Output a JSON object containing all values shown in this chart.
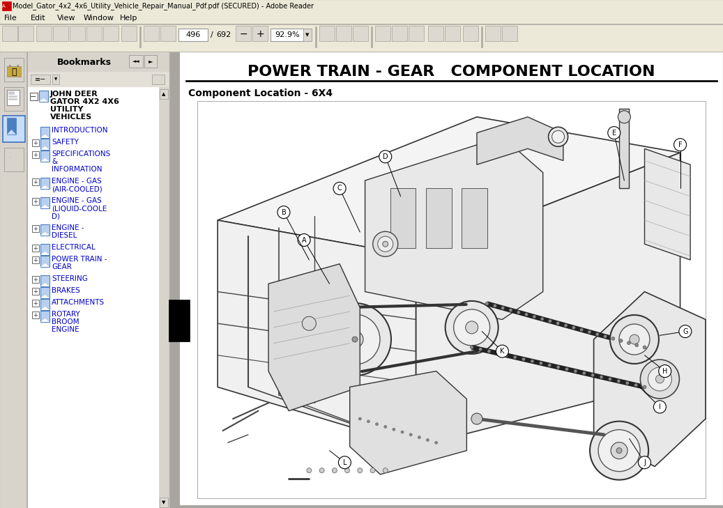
{
  "title_bar": "Model_Gator_4x2_4x6_Utility_Vehicle_Repair_Manual_Pdf.pdf (SECURED) - Adobe Reader",
  "menu_items": [
    "File",
    "Edit",
    "View",
    "Window",
    "Help"
  ],
  "page_num": "496",
  "total_pages": "692",
  "zoom_level": "92.9%",
  "panel_title": "Bookmarks",
  "bookmark_root_lines": [
    "JOHN DEER",
    "GATOR 4X2 4X6",
    "UTILITY",
    "VEHICLES"
  ],
  "bookmarks": [
    {
      "text": "INTRODUCTION",
      "plus": false,
      "lines": [
        "INTRODUCTION"
      ]
    },
    {
      "text": "SAFETY",
      "plus": true,
      "lines": [
        "SAFETY"
      ]
    },
    {
      "text": "SPECIFICATIONS\n&\nINFORMATION",
      "plus": true,
      "lines": [
        "SPECIFICATIONS",
        "&",
        "INFORMATION"
      ]
    },
    {
      "text": "ENGINE - GAS\n(AIR-COOLED)",
      "plus": true,
      "lines": [
        "ENGINE - GAS",
        "(AIR-COOLED)"
      ]
    },
    {
      "text": "ENGINE - GAS\n(LIQUID-COOLE\nD)",
      "plus": true,
      "lines": [
        "ENGINE - GAS",
        "(LIQUID-COOLE",
        "D)"
      ]
    },
    {
      "text": "ENGINE -\nDIESEL",
      "plus": true,
      "lines": [
        "ENGINE -",
        "DIESEL"
      ]
    },
    {
      "text": "ELECTRICAL",
      "plus": true,
      "lines": [
        "ELECTRICAL"
      ]
    },
    {
      "text": "POWER TRAIN -\nGEAR",
      "plus": true,
      "lines": [
        "POWER TRAIN -",
        "GEAR"
      ]
    },
    {
      "text": "STEERING",
      "plus": true,
      "lines": [
        "STEERING"
      ]
    },
    {
      "text": "BRAKES",
      "plus": true,
      "lines": [
        "BRAKES"
      ]
    },
    {
      "text": "ATTACHMENTS",
      "plus": true,
      "lines": [
        "ATTACHMENTS"
      ]
    },
    {
      "text": "ROTARY\nBROOM\nENGINE",
      "plus": true,
      "lines": [
        "ROTARY",
        "BROOM",
        "ENGINE"
      ]
    }
  ],
  "page_title": "POWER TRAIN - GEAR   COMPONENT LOCATION",
  "section_label": "Component Location - 6X4",
  "bg_color": "#c8c4bc",
  "content_bg": "#ffffff",
  "bookmark_text_color": "#0000cc",
  "root_text_color": "#000000"
}
